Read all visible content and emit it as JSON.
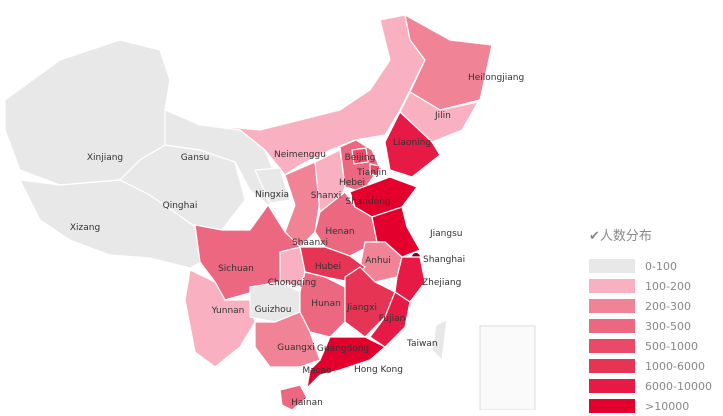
{
  "legend": {
    "title": "人数分布",
    "check_icon": "checkmark-icon",
    "items": [
      {
        "label": "0-100",
        "color": "#e8e8e8"
      },
      {
        "label": "100-200",
        "color": "#f9b1c1"
      },
      {
        "label": "200-300",
        "color": "#f08496"
      },
      {
        "label": "300-500",
        "color": "#ec6780"
      },
      {
        "label": "500-1000",
        "color": "#ea4a67"
      },
      {
        "label": "1000-6000",
        "color": "#e63455"
      },
      {
        "label": "6000-10000",
        "color": "#e71a45"
      },
      {
        "label": ">10000",
        "color": "#e4002c"
      }
    ]
  },
  "provinces": [
    {
      "name": "Xinjiang",
      "level": 0
    },
    {
      "name": "Xizang",
      "level": 0
    },
    {
      "name": "Qinghai",
      "level": 0
    },
    {
      "name": "Gansu",
      "level": 0
    },
    {
      "name": "Neimenggu",
      "level": 1
    },
    {
      "name": "Heilongjiang",
      "level": 2
    },
    {
      "name": "Jilin",
      "level": 1
    },
    {
      "name": "Liaoning",
      "level": 6
    },
    {
      "name": "Hebei",
      "level": 3
    },
    {
      "name": "Beijing",
      "level": 4
    },
    {
      "name": "Tianjin",
      "level": 4
    },
    {
      "name": "Ningxia",
      "level": 0
    },
    {
      "name": "Shaanxi",
      "level": 2
    },
    {
      "name": "Shanxi",
      "level": 1
    },
    {
      "name": "Shandong",
      "level": 7
    },
    {
      "name": "Henan",
      "level": 3
    },
    {
      "name": "Jiangsu",
      "level": 7
    },
    {
      "name": "Anhui",
      "level": 2
    },
    {
      "name": "Shanghai",
      "level": 8
    },
    {
      "name": "Zhejiang",
      "level": 6
    },
    {
      "name": "Hubei",
      "level": 5
    },
    {
      "name": "Chongqing",
      "level": 1
    },
    {
      "name": "Sichuan",
      "level": 3
    },
    {
      "name": "Yunnan",
      "level": 1
    },
    {
      "name": "Guizhou",
      "level": 0
    },
    {
      "name": "Hunan",
      "level": 3
    },
    {
      "name": "Jiangxi",
      "level": 5
    },
    {
      "name": "Fujian",
      "level": 6
    },
    {
      "name": "Guangdong",
      "level": 7
    },
    {
      "name": "Guangxi",
      "level": 2
    },
    {
      "name": "Hainan",
      "level": 3
    },
    {
      "name": "Taiwan",
      "level": 0
    },
    {
      "name": "Hong Kong",
      "level": 0
    },
    {
      "name": "Macao",
      "level": 0
    }
  ]
}
